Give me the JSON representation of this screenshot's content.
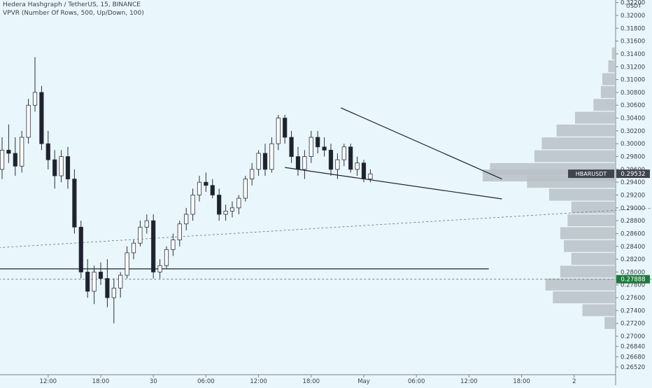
{
  "header": {
    "symbol_line": "Hedera Hashgraph / TetherUS, 15, BINANCE",
    "indicator_line": "VPVR (Number Of Rows, 500, Up/Down, 100)"
  },
  "chart_data": {
    "type": "candlestick",
    "symbol": "HBARUSDT",
    "interval": "15",
    "exchange": "BINANCE",
    "y_axis": {
      "unit_label": "USDT",
      "ylim": [
        0.264,
        0.3224
      ],
      "ticks": [
        "0.32200",
        "0.32000",
        "0.31800",
        "0.31600",
        "0.31400",
        "0.31200",
        "0.31000",
        "0.30800",
        "0.30600",
        "0.30400",
        "0.30200",
        "0.30000",
        "0.29800",
        "0.29600",
        "0.29400",
        "0.29200",
        "0.29000",
        "0.28800",
        "0.28600",
        "0.28400",
        "0.28200",
        "0.28000",
        "0.27800",
        "0.27600",
        "0.27400",
        "0.27200",
        "0.27000",
        "0.26840",
        "0.26680",
        "0.26520"
      ]
    },
    "x_axis": {
      "ticks": [
        {
          "label": "12:00",
          "bar": 7
        },
        {
          "label": "18:00",
          "bar": 15
        },
        {
          "label": "30",
          "bar": 23
        },
        {
          "label": "06:00",
          "bar": 31
        },
        {
          "label": "12:00",
          "bar": 39
        },
        {
          "label": "18:00",
          "bar": 47
        },
        {
          "label": "May",
          "bar": 55
        },
        {
          "label": "06:00",
          "bar": 63
        },
        {
          "label": "12:00",
          "bar": 71
        },
        {
          "label": "18:00",
          "bar": 79
        },
        {
          "label": "2",
          "bar": 87
        }
      ]
    },
    "colors": {
      "up": "#ffffff",
      "down": "#1e2230",
      "wick": "#2a2e39",
      "profile": "#b9c1c7",
      "badge_price": "#3f4450",
      "badge_last": "#1e7a3a"
    },
    "price_badges": [
      {
        "label": "HBARUSDT",
        "price": "0.29532",
        "value": 0.29532
      },
      {
        "label": "",
        "price": "0.27888",
        "value": 0.27888
      }
    ],
    "candles": [
      [
        0.296,
        0.301,
        0.2945,
        0.299
      ],
      [
        0.299,
        0.303,
        0.297,
        0.2985
      ],
      [
        0.2985,
        0.301,
        0.295,
        0.2965
      ],
      [
        0.2965,
        0.302,
        0.2955,
        0.301
      ],
      [
        0.301,
        0.307,
        0.3,
        0.306
      ],
      [
        0.306,
        0.3135,
        0.305,
        0.308
      ],
      [
        0.308,
        0.309,
        0.299,
        0.3
      ],
      [
        0.3,
        0.302,
        0.296,
        0.2975
      ],
      [
        0.2975,
        0.299,
        0.293,
        0.295
      ],
      [
        0.295,
        0.299,
        0.294,
        0.298
      ],
      [
        0.298,
        0.2995,
        0.293,
        0.2945
      ],
      [
        0.2945,
        0.296,
        0.286,
        0.287
      ],
      [
        0.287,
        0.288,
        0.279,
        0.28
      ],
      [
        0.28,
        0.282,
        0.276,
        0.277
      ],
      [
        0.277,
        0.281,
        0.275,
        0.28
      ],
      [
        0.28,
        0.2815,
        0.278,
        0.279
      ],
      [
        0.279,
        0.282,
        0.2745,
        0.276
      ],
      [
        0.276,
        0.279,
        0.272,
        0.2775
      ],
      [
        0.2775,
        0.28,
        0.276,
        0.2795
      ],
      [
        0.2795,
        0.284,
        0.279,
        0.283
      ],
      [
        0.283,
        0.285,
        0.282,
        0.2845
      ],
      [
        0.2845,
        0.288,
        0.284,
        0.287
      ],
      [
        0.287,
        0.289,
        0.286,
        0.288
      ],
      [
        0.288,
        0.289,
        0.279,
        0.28
      ],
      [
        0.28,
        0.282,
        0.279,
        0.281
      ],
      [
        0.281,
        0.284,
        0.2805,
        0.2835
      ],
      [
        0.2835,
        0.286,
        0.2825,
        0.285
      ],
      [
        0.285,
        0.288,
        0.284,
        0.2875
      ],
      [
        0.2875,
        0.29,
        0.2865,
        0.289
      ],
      [
        0.289,
        0.293,
        0.288,
        0.292
      ],
      [
        0.292,
        0.295,
        0.291,
        0.294
      ],
      [
        0.294,
        0.2955,
        0.2925,
        0.2935
      ],
      [
        0.2935,
        0.2945,
        0.2915,
        0.292
      ],
      [
        0.292,
        0.293,
        0.288,
        0.289
      ],
      [
        0.289,
        0.2905,
        0.288,
        0.2895
      ],
      [
        0.2895,
        0.291,
        0.2885,
        0.29
      ],
      [
        0.29,
        0.292,
        0.289,
        0.2915
      ],
      [
        0.2915,
        0.295,
        0.291,
        0.2945
      ],
      [
        0.2945,
        0.297,
        0.2935,
        0.296
      ],
      [
        0.296,
        0.299,
        0.295,
        0.2985
      ],
      [
        0.2985,
        0.3,
        0.295,
        0.296
      ],
      [
        0.296,
        0.301,
        0.2955,
        0.3
      ],
      [
        0.3,
        0.3045,
        0.299,
        0.304
      ],
      [
        0.304,
        0.3045,
        0.3,
        0.301
      ],
      [
        0.301,
        0.302,
        0.297,
        0.298
      ],
      [
        0.298,
        0.2995,
        0.295,
        0.296
      ],
      [
        0.296,
        0.299,
        0.2945,
        0.298
      ],
      [
        0.298,
        0.302,
        0.297,
        0.301
      ],
      [
        0.301,
        0.302,
        0.2985,
        0.2995
      ],
      [
        0.2995,
        0.301,
        0.298,
        0.299
      ],
      [
        0.299,
        0.3,
        0.295,
        0.296
      ],
      [
        0.296,
        0.2985,
        0.2945,
        0.2975
      ],
      [
        0.2975,
        0.3,
        0.2965,
        0.2995
      ],
      [
        0.2995,
        0.3,
        0.2955,
        0.296
      ],
      [
        0.296,
        0.298,
        0.295,
        0.297
      ],
      [
        0.297,
        0.2975,
        0.294,
        0.2945
      ],
      [
        0.2945,
        0.296,
        0.294,
        0.2953
      ]
    ],
    "volume_profile": [
      {
        "price": 0.314,
        "volume": 5
      },
      {
        "price": 0.312,
        "volume": 10
      },
      {
        "price": 0.31,
        "volume": 18
      },
      {
        "price": 0.308,
        "volume": 20
      },
      {
        "price": 0.306,
        "volume": 30
      },
      {
        "price": 0.304,
        "volume": 55
      },
      {
        "price": 0.302,
        "volume": 80
      },
      {
        "price": 0.3,
        "volume": 100
      },
      {
        "price": 0.298,
        "volume": 110
      },
      {
        "price": 0.296,
        "volume": 170
      },
      {
        "price": 0.295,
        "volume": 180
      },
      {
        "price": 0.294,
        "volume": 120
      },
      {
        "price": 0.292,
        "volume": 90
      },
      {
        "price": 0.29,
        "volume": 60
      },
      {
        "price": 0.288,
        "volume": 65
      },
      {
        "price": 0.286,
        "volume": 75
      },
      {
        "price": 0.284,
        "volume": 70
      },
      {
        "price": 0.282,
        "volume": 60
      },
      {
        "price": 0.28,
        "volume": 75
      },
      {
        "price": 0.278,
        "volume": 95
      },
      {
        "price": 0.276,
        "volume": 85
      },
      {
        "price": 0.274,
        "volume": 45
      },
      {
        "price": 0.272,
        "volume": 15
      }
    ],
    "drawings": [
      {
        "name": "falling-wedge-upper-line",
        "from": {
          "bar": 51.5,
          "price": 0.3056
        },
        "to": {
          "bar": 76,
          "price": 0.2945
        }
      },
      {
        "name": "falling-wedge-lower-line",
        "from": {
          "bar": 43,
          "price": 0.2963
        },
        "to": {
          "bar": 76,
          "price": 0.2914
        }
      },
      {
        "name": "horizontal-support-line",
        "from": {
          "bar": -0.5,
          "price": 0.2805
        },
        "to": {
          "bar": 74,
          "price": 0.2805
        }
      },
      {
        "name": "dashed-trend-line",
        "from": {
          "bar": -0.5,
          "price": 0.2838
        },
        "to": {
          "bar": 109,
          "price": 0.2906
        }
      },
      {
        "name": "dashed-price-level",
        "from": {
          "bar": -0.5,
          "price": 0.27888
        },
        "to": {
          "bar": 109,
          "price": 0.27888
        }
      }
    ]
  }
}
